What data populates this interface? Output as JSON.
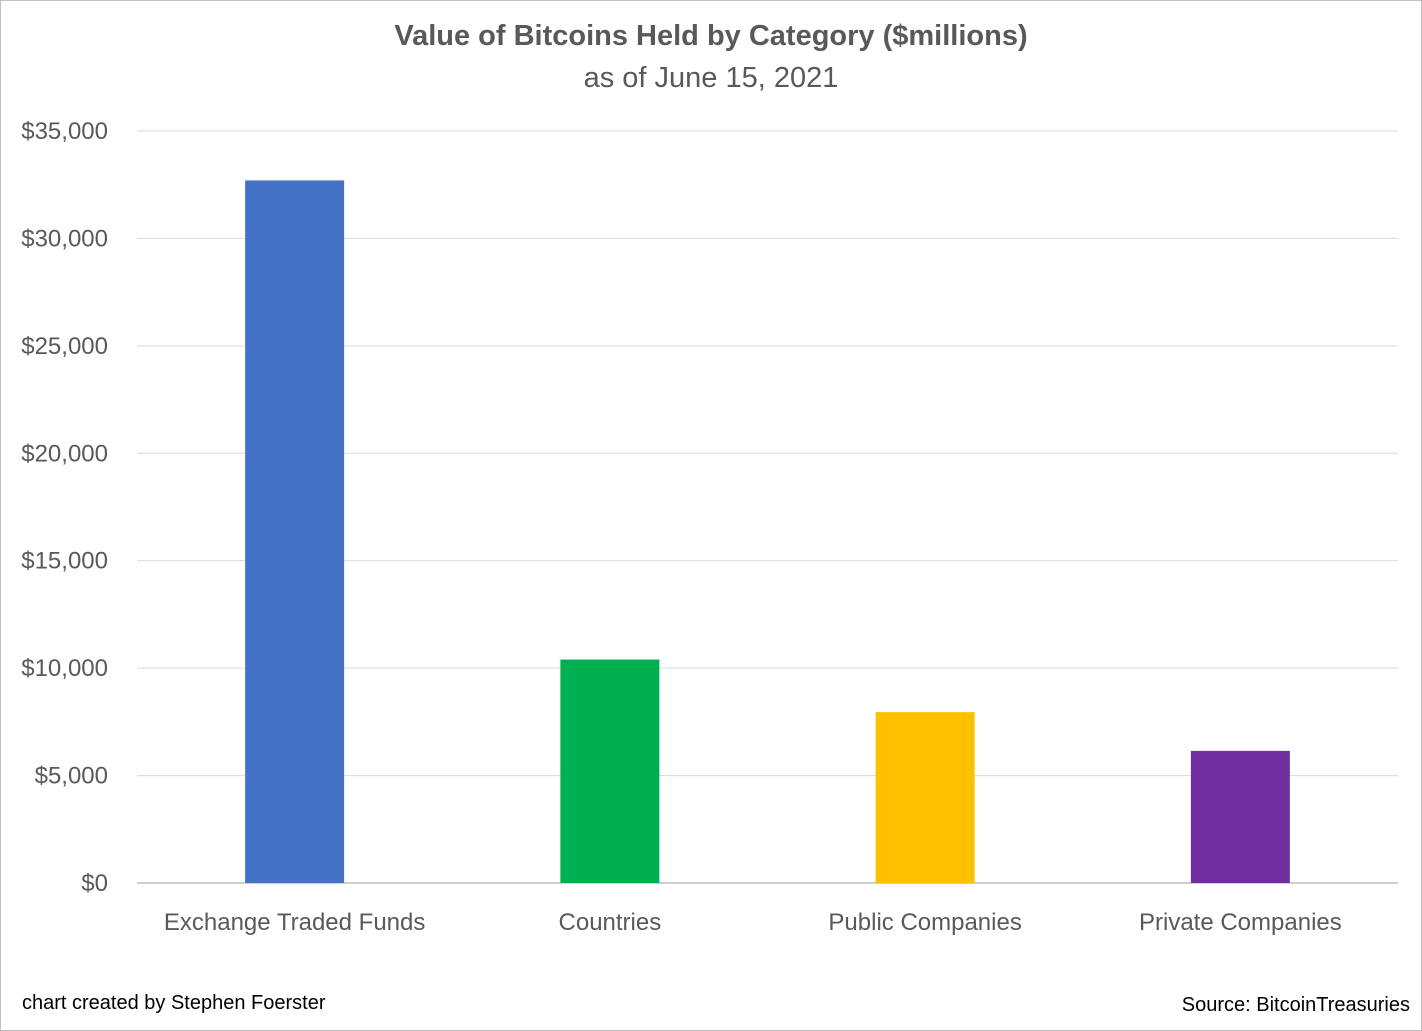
{
  "chart_data": {
    "type": "bar",
    "title": "Value of Bitcoins Held by Category ($millions)",
    "subtitle": "as of June 15, 2021",
    "xlabel": "",
    "ylabel": "",
    "categories": [
      "Exchange Traded Funds",
      "Countries",
      "Public Companies",
      "Private Companies"
    ],
    "values": [
      32700,
      10400,
      7950,
      6150
    ],
    "colors": [
      "#4472c4",
      "#00b050",
      "#ffc000",
      "#7030a0"
    ],
    "ylim": [
      0,
      35000
    ],
    "yticks": [
      0,
      5000,
      10000,
      15000,
      20000,
      25000,
      30000,
      35000
    ],
    "ytick_labels": [
      "$0",
      "$5,000",
      "$10,000",
      "$15,000",
      "$20,000",
      "$25,000",
      "$30,000",
      "$35,000"
    ],
    "grid": true,
    "legend": "none"
  },
  "footer": {
    "credit": "chart created by Stephen Foerster",
    "source": "Source: BitcoinTreasuries"
  }
}
